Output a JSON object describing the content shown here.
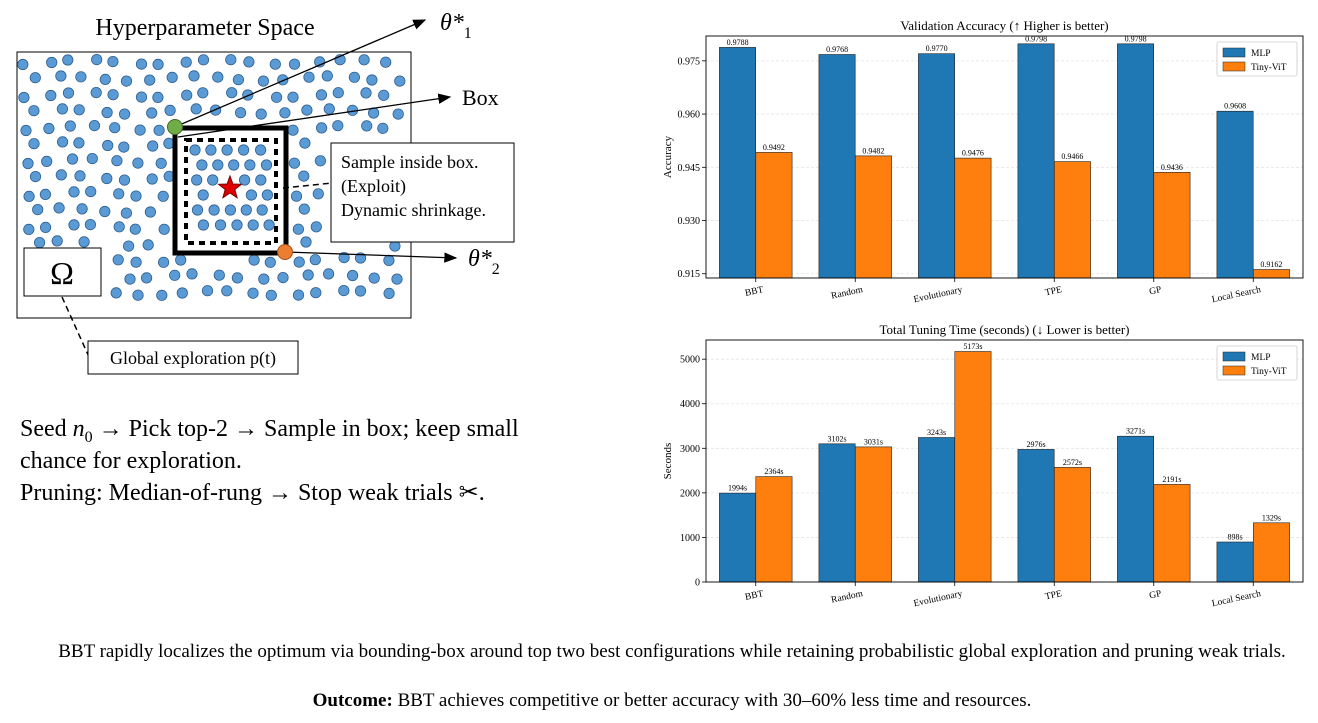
{
  "diagram": {
    "title": "Hyperparameter Space",
    "theta1_label": "θ*",
    "theta1_sub": "1",
    "theta2_label": "θ*",
    "theta2_sub": "2",
    "box_label": "Box",
    "omega_label": "Ω",
    "callout_lines": [
      "Sample inside box.",
      "(Exploit)",
      "Dynamic shrinkage."
    ],
    "global_label": "Global exploration p(t)",
    "colors": {
      "dot": "#5b9bd5",
      "dot_stroke": "#2f5f8f",
      "theta1_dot": "#70ad47",
      "theta2_dot": "#ed7d31",
      "star": "#e00000"
    }
  },
  "description": {
    "line1_pre": "Seed ",
    "line1_var": "n",
    "line1_sub": "0",
    "line1_post": " → Pick top-2 → Sample in box; keep small",
    "line2": "chance for exploration.",
    "line3": "Pruning: Median-of-rung → Stop weak trials ✂."
  },
  "caption": {
    "line1": "BBT rapidly localizes the optimum via bounding-box around top two best configurations while retaining probabilistic global exploration and pruning weak trials.",
    "bold": "Outcome:",
    "line2": " BBT achieves competitive or better accuracy with 30–60% less time and resources."
  },
  "chart_data": [
    {
      "type": "bar",
      "title": "Validation Accuracy (↑ Higher is better)",
      "xlabel": "",
      "ylabel": "Accuracy",
      "categories": [
        "BBT",
        "Random",
        "Evolutionary",
        "TPE",
        "GP",
        "Local Search"
      ],
      "series": [
        {
          "name": "MLP",
          "color": "#1f77b4",
          "values": [
            0.9788,
            0.9768,
            0.977,
            0.9798,
            0.9798,
            0.9608
          ]
        },
        {
          "name": "Tiny-ViT",
          "color": "#ff7f0e",
          "values": [
            0.9492,
            0.9482,
            0.9476,
            0.9466,
            0.9436,
            0.9162
          ]
        }
      ],
      "data_labels": [
        [
          "0.9788",
          "0.9768",
          "0.9770",
          "0.9798",
          "0.9798",
          "0.9608"
        ],
        [
          "0.9492",
          "0.9482",
          "0.9476",
          "0.9466",
          "0.9436",
          "0.9162"
        ]
      ],
      "ylim": [
        0.9138,
        0.982
      ],
      "yticks": [
        0.915,
        0.93,
        0.945,
        0.96,
        0.975
      ],
      "ytick_labels": [
        "0.915",
        "0.930",
        "0.945",
        "0.960",
        "0.975"
      ],
      "grid": true,
      "legend": "top-right"
    },
    {
      "type": "bar",
      "title": "Total Tuning Time (seconds) (↓ Lower is better)",
      "xlabel": "",
      "ylabel": "Seconds",
      "categories": [
        "BBT",
        "Random",
        "Evolutionary",
        "TPE",
        "GP",
        "Local Search"
      ],
      "series": [
        {
          "name": "MLP",
          "color": "#1f77b4",
          "values": [
            1994,
            3102,
            3243,
            2976,
            3271,
            898
          ]
        },
        {
          "name": "Tiny-ViT",
          "color": "#ff7f0e",
          "values": [
            2364,
            3031,
            5173,
            2572,
            2191,
            1329
          ]
        }
      ],
      "data_labels": [
        [
          "1994s",
          "3102s",
          "3243s",
          "2976s",
          "3271s",
          "898s"
        ],
        [
          "2364s",
          "3031s",
          "5173s",
          "2572s",
          "2191s",
          "1329s"
        ]
      ],
      "ylim": [
        0,
        5430
      ],
      "yticks": [
        0,
        1000,
        2000,
        3000,
        4000,
        5000
      ],
      "ytick_labels": [
        "0",
        "1000",
        "2000",
        "3000",
        "4000",
        "5000"
      ],
      "grid": true,
      "legend": "top-right"
    }
  ]
}
